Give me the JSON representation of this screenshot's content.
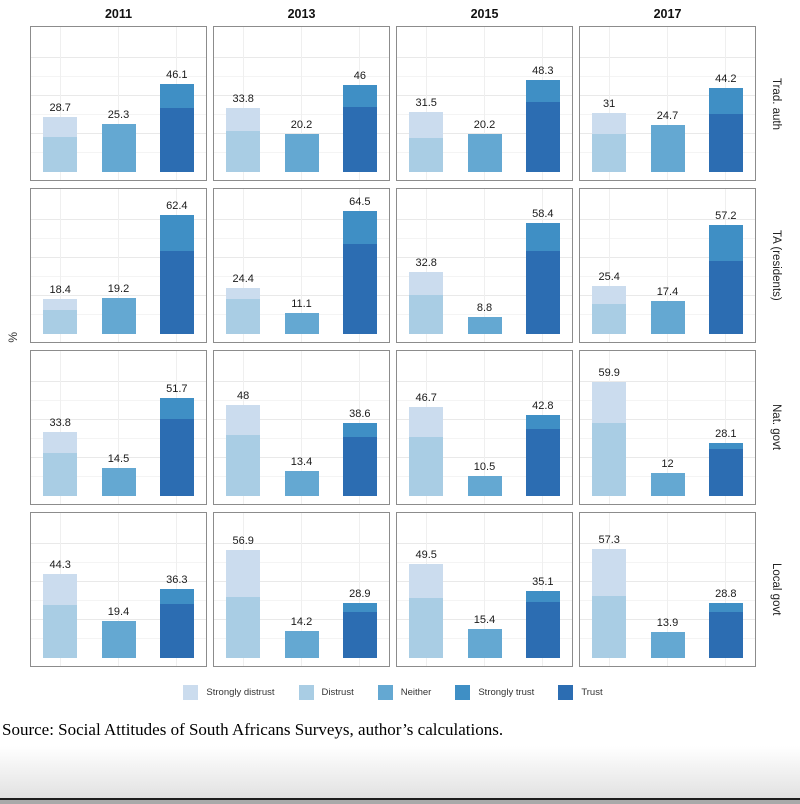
{
  "source_caption": "Source: Social Attitudes of South Africans Surveys, author’s calculations.",
  "chart_data": {
    "type": "bar",
    "subtype": "faceted-stacked-bar",
    "title": "",
    "ylabel": "%",
    "xlabel": "",
    "ylim": [
      0,
      70
    ],
    "gridlines_major": [
      20,
      40,
      60
    ],
    "gridlines_minor": [
      10,
      30,
      50
    ],
    "legend_position": "bottom",
    "facet_columns": [
      "2011",
      "2013",
      "2015",
      "2017"
    ],
    "facet_rows": [
      "Trad. auth",
      "TA (residents)",
      "Nat. govt",
      "Local govt"
    ],
    "legend": [
      "Strongly distrust",
      "Distrust",
      "Neither",
      "Strongly trust",
      "Trust"
    ],
    "colors": {
      "Strongly distrust": "#cbdcee",
      "Distrust": "#a9cde4",
      "Neither": "#64a8d2",
      "Strongly trust": "#3f8fc5",
      "Trust": "#2c6db2"
    },
    "segments_note": "Only bar totals are labeled in the figure; per-segment splits estimated from pixel positions.",
    "panels": [
      {
        "row": "Trad. auth",
        "col": "2011",
        "bars": [
          {
            "value_label": "28.7",
            "total": 28.7,
            "segments": [
              {
                "label": "Strongly distrust",
                "value": 10.5
              },
              {
                "label": "Distrust",
                "value": 18.2
              }
            ]
          },
          {
            "value_label": "25.3",
            "total": 25.3,
            "segments": [
              {
                "label": "Neither",
                "value": 25.3
              }
            ]
          },
          {
            "value_label": "46.1",
            "total": 46.1,
            "segments": [
              {
                "label": "Strongly trust",
                "value": 12.5
              },
              {
                "label": "Trust",
                "value": 33.6
              }
            ]
          }
        ]
      },
      {
        "row": "Trad. auth",
        "col": "2013",
        "bars": [
          {
            "value_label": "33.8",
            "total": 33.8,
            "segments": [
              {
                "label": "Strongly distrust",
                "value": 12.4
              },
              {
                "label": "Distrust",
                "value": 21.4
              }
            ]
          },
          {
            "value_label": "20.2",
            "total": 20.2,
            "segments": [
              {
                "label": "Neither",
                "value": 20.2
              }
            ]
          },
          {
            "value_label": "46",
            "total": 46,
            "segments": [
              {
                "label": "Strongly trust",
                "value": 11.8
              },
              {
                "label": "Trust",
                "value": 34.2
              }
            ]
          }
        ]
      },
      {
        "row": "Trad. auth",
        "col": "2015",
        "bars": [
          {
            "value_label": "31.5",
            "total": 31.5,
            "segments": [
              {
                "label": "Strongly distrust",
                "value": 13.4
              },
              {
                "label": "Distrust",
                "value": 18.1
              }
            ]
          },
          {
            "value_label": "20.2",
            "total": 20.2,
            "segments": [
              {
                "label": "Neither",
                "value": 20.2
              }
            ]
          },
          {
            "value_label": "48.3",
            "total": 48.3,
            "segments": [
              {
                "label": "Strongly trust",
                "value": 11.3
              },
              {
                "label": "Trust",
                "value": 37.0
              }
            ]
          }
        ]
      },
      {
        "row": "Trad. auth",
        "col": "2017",
        "bars": [
          {
            "value_label": "31",
            "total": 31,
            "segments": [
              {
                "label": "Strongly distrust",
                "value": 11.0
              },
              {
                "label": "Distrust",
                "value": 20.0
              }
            ]
          },
          {
            "value_label": "24.7",
            "total": 24.7,
            "segments": [
              {
                "label": "Neither",
                "value": 24.7
              }
            ]
          },
          {
            "value_label": "44.2",
            "total": 44.2,
            "segments": [
              {
                "label": "Strongly trust",
                "value": 13.7
              },
              {
                "label": "Trust",
                "value": 30.5
              }
            ]
          }
        ]
      },
      {
        "row": "TA (residents)",
        "col": "2011",
        "bars": [
          {
            "value_label": "18.4",
            "total": 18.4,
            "segments": [
              {
                "label": "Strongly distrust",
                "value": 5.7
              },
              {
                "label": "Distrust",
                "value": 12.7
              }
            ]
          },
          {
            "value_label": "19.2",
            "total": 19.2,
            "segments": [
              {
                "label": "Neither",
                "value": 19.2
              }
            ]
          },
          {
            "value_label": "62.4",
            "total": 62.4,
            "segments": [
              {
                "label": "Strongly trust",
                "value": 18.8
              },
              {
                "label": "Trust",
                "value": 43.6
              }
            ]
          }
        ]
      },
      {
        "row": "TA (residents)",
        "col": "2013",
        "bars": [
          {
            "value_label": "24.4",
            "total": 24.4,
            "segments": [
              {
                "label": "Strongly distrust",
                "value": 6.1
              },
              {
                "label": "Distrust",
                "value": 18.3
              }
            ]
          },
          {
            "value_label": "11.1",
            "total": 11.1,
            "segments": [
              {
                "label": "Neither",
                "value": 11.1
              }
            ]
          },
          {
            "value_label": "64.5",
            "total": 64.5,
            "segments": [
              {
                "label": "Strongly trust",
                "value": 17.3
              },
              {
                "label": "Trust",
                "value": 47.2
              }
            ]
          }
        ]
      },
      {
        "row": "TA (residents)",
        "col": "2015",
        "bars": [
          {
            "value_label": "32.8",
            "total": 32.8,
            "segments": [
              {
                "label": "Strongly distrust",
                "value": 12.2
              },
              {
                "label": "Distrust",
                "value": 20.6
              }
            ]
          },
          {
            "value_label": "8.8",
            "total": 8.8,
            "segments": [
              {
                "label": "Neither",
                "value": 8.8
              }
            ]
          },
          {
            "value_label": "58.4",
            "total": 58.4,
            "segments": [
              {
                "label": "Strongly trust",
                "value": 14.8
              },
              {
                "label": "Trust",
                "value": 43.6
              }
            ]
          }
        ]
      },
      {
        "row": "TA (residents)",
        "col": "2017",
        "bars": [
          {
            "value_label": "25.4",
            "total": 25.4,
            "segments": [
              {
                "label": "Strongly distrust",
                "value": 9.6
              },
              {
                "label": "Distrust",
                "value": 15.8
              }
            ]
          },
          {
            "value_label": "17.4",
            "total": 17.4,
            "segments": [
              {
                "label": "Neither",
                "value": 17.4
              }
            ]
          },
          {
            "value_label": "57.2",
            "total": 57.2,
            "segments": [
              {
                "label": "Strongly trust",
                "value": 18.7
              },
              {
                "label": "Trust",
                "value": 38.5
              }
            ]
          }
        ]
      },
      {
        "row": "Nat. govt",
        "col": "2011",
        "bars": [
          {
            "value_label": "33.8",
            "total": 33.8,
            "segments": [
              {
                "label": "Strongly distrust",
                "value": 11.3
              },
              {
                "label": "Distrust",
                "value": 22.5
              }
            ]
          },
          {
            "value_label": "14.5",
            "total": 14.5,
            "segments": [
              {
                "label": "Neither",
                "value": 14.5
              }
            ]
          },
          {
            "value_label": "51.7",
            "total": 51.7,
            "segments": [
              {
                "label": "Strongly trust",
                "value": 11.2
              },
              {
                "label": "Trust",
                "value": 40.5
              }
            ]
          }
        ]
      },
      {
        "row": "Nat. govt",
        "col": "2013",
        "bars": [
          {
            "value_label": "48",
            "total": 48,
            "segments": [
              {
                "label": "Strongly distrust",
                "value": 15.7
              },
              {
                "label": "Distrust",
                "value": 32.3
              }
            ]
          },
          {
            "value_label": "13.4",
            "total": 13.4,
            "segments": [
              {
                "label": "Neither",
                "value": 13.4
              }
            ]
          },
          {
            "value_label": "38.6",
            "total": 38.6,
            "segments": [
              {
                "label": "Strongly trust",
                "value": 7.4
              },
              {
                "label": "Trust",
                "value": 31.2
              }
            ]
          }
        ]
      },
      {
        "row": "Nat. govt",
        "col": "2015",
        "bars": [
          {
            "value_label": "46.7",
            "total": 46.7,
            "segments": [
              {
                "label": "Strongly distrust",
                "value": 15.6
              },
              {
                "label": "Distrust",
                "value": 31.1
              }
            ]
          },
          {
            "value_label": "10.5",
            "total": 10.5,
            "segments": [
              {
                "label": "Neither",
                "value": 10.5
              }
            ]
          },
          {
            "value_label": "42.8",
            "total": 42.8,
            "segments": [
              {
                "label": "Strongly trust",
                "value": 7.4
              },
              {
                "label": "Trust",
                "value": 35.4
              }
            ]
          }
        ]
      },
      {
        "row": "Nat. govt",
        "col": "2017",
        "bars": [
          {
            "value_label": "59.9",
            "total": 59.9,
            "segments": [
              {
                "label": "Strongly distrust",
                "value": 21.4
              },
              {
                "label": "Distrust",
                "value": 38.5
              }
            ]
          },
          {
            "value_label": "12",
            "total": 12,
            "segments": [
              {
                "label": "Neither",
                "value": 12
              }
            ]
          },
          {
            "value_label": "28.1",
            "total": 28.1,
            "segments": [
              {
                "label": "Strongly trust",
                "value": 3.5
              },
              {
                "label": "Trust",
                "value": 24.6
              }
            ]
          }
        ]
      },
      {
        "row": "Local govt",
        "col": "2011",
        "bars": [
          {
            "value_label": "44.3",
            "total": 44.3,
            "segments": [
              {
                "label": "Strongly distrust",
                "value": 16.3
              },
              {
                "label": "Distrust",
                "value": 28.0
              }
            ]
          },
          {
            "value_label": "19.4",
            "total": 19.4,
            "segments": [
              {
                "label": "Neither",
                "value": 19.4
              }
            ]
          },
          {
            "value_label": "36.3",
            "total": 36.3,
            "segments": [
              {
                "label": "Strongly trust",
                "value": 7.7
              },
              {
                "label": "Trust",
                "value": 28.6
              }
            ]
          }
        ]
      },
      {
        "row": "Local govt",
        "col": "2013",
        "bars": [
          {
            "value_label": "56.9",
            "total": 56.9,
            "segments": [
              {
                "label": "Strongly distrust",
                "value": 24.8
              },
              {
                "label": "Distrust",
                "value": 32.1
              }
            ]
          },
          {
            "value_label": "14.2",
            "total": 14.2,
            "segments": [
              {
                "label": "Neither",
                "value": 14.2
              }
            ]
          },
          {
            "value_label": "28.9",
            "total": 28.9,
            "segments": [
              {
                "label": "Strongly trust",
                "value": 4.8
              },
              {
                "label": "Trust",
                "value": 24.1
              }
            ]
          }
        ]
      },
      {
        "row": "Local govt",
        "col": "2015",
        "bars": [
          {
            "value_label": "49.5",
            "total": 49.5,
            "segments": [
              {
                "label": "Strongly distrust",
                "value": 18.0
              },
              {
                "label": "Distrust",
                "value": 31.5
              }
            ]
          },
          {
            "value_label": "15.4",
            "total": 15.4,
            "segments": [
              {
                "label": "Neither",
                "value": 15.4
              }
            ]
          },
          {
            "value_label": "35.1",
            "total": 35.1,
            "segments": [
              {
                "label": "Strongly trust",
                "value": 5.6
              },
              {
                "label": "Trust",
                "value": 29.5
              }
            ]
          }
        ]
      },
      {
        "row": "Local govt",
        "col": "2017",
        "bars": [
          {
            "value_label": "57.3",
            "total": 57.3,
            "segments": [
              {
                "label": "Strongly distrust",
                "value": 24.6
              },
              {
                "label": "Distrust",
                "value": 32.7
              }
            ]
          },
          {
            "value_label": "13.9",
            "total": 13.9,
            "segments": [
              {
                "label": "Neither",
                "value": 13.9
              }
            ]
          },
          {
            "value_label": "28.8",
            "total": 28.8,
            "segments": [
              {
                "label": "Strongly trust",
                "value": 4.7
              },
              {
                "label": "Trust",
                "value": 24.1
              }
            ]
          }
        ]
      }
    ]
  }
}
